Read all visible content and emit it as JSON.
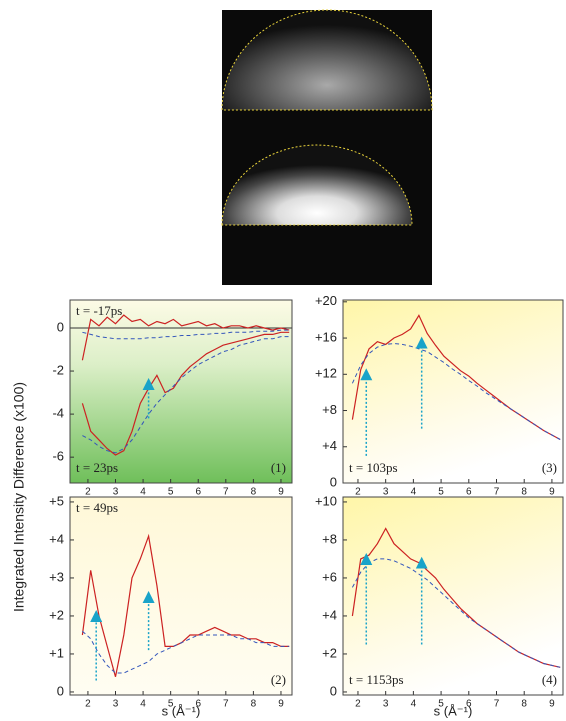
{
  "chart_data": [
    {
      "type": "line",
      "ylabel": "Integrated Intensity Difference (x100)",
      "panel_label": "(1)",
      "xlim": [
        1.35,
        9.4
      ],
      "ylim": [
        -7.2,
        1.3
      ],
      "xticks": [
        2,
        3,
        4,
        5,
        6,
        7,
        8,
        9
      ],
      "yticks": [
        0,
        -2,
        -4,
        -6
      ],
      "reference_line": 0,
      "x": [
        1.8,
        2.1,
        2.4,
        2.7,
        3.0,
        3.3,
        3.6,
        3.9,
        4.2,
        4.5,
        4.8,
        5.1,
        5.4,
        5.7,
        6.0,
        6.3,
        6.6,
        6.9,
        7.2,
        7.5,
        7.8,
        8.1,
        8.4,
        8.7,
        9.0,
        9.3
      ],
      "series": [
        {
          "name": "t = -17ps",
          "color": "#cc2222",
          "style": "solid",
          "values": [
            -1.5,
            0.4,
            0.1,
            0.5,
            0.2,
            0.6,
            0.3,
            0.4,
            0.1,
            0.3,
            0.2,
            0.4,
            0.1,
            0.2,
            0.3,
            0.1,
            0.2,
            0.0,
            0.1,
            0.1,
            0.0,
            0.1,
            0.0,
            -0.1,
            0.0,
            -0.1
          ]
        },
        {
          "color": "#3355bb",
          "style": "dashed",
          "values": [
            -0.2,
            -0.3,
            -0.4,
            -0.45,
            -0.5,
            -0.5,
            -0.5,
            -0.5,
            -0.45,
            -0.45,
            -0.4,
            -0.4,
            -0.35,
            -0.35,
            -0.3,
            -0.3,
            -0.25,
            -0.25,
            -0.2,
            -0.2,
            -0.2,
            -0.15,
            -0.15,
            -0.15,
            -0.1,
            -0.1
          ]
        },
        {
          "name": "t = 23ps",
          "color": "#cc2222",
          "style": "solid",
          "values": [
            -3.5,
            -4.8,
            -5.2,
            -5.6,
            -5.9,
            -5.7,
            -4.8,
            -3.5,
            -2.8,
            -2.2,
            -3.0,
            -2.8,
            -2.2,
            -1.8,
            -1.5,
            -1.2,
            -1.0,
            -0.8,
            -0.7,
            -0.6,
            -0.5,
            -0.4,
            -0.3,
            -0.3,
            -0.2,
            -0.2
          ]
        },
        {
          "color": "#3355bb",
          "style": "dashed",
          "values": [
            -5.0,
            -5.2,
            -5.5,
            -5.7,
            -5.8,
            -5.6,
            -5.2,
            -4.6,
            -4.0,
            -3.5,
            -3.1,
            -2.7,
            -2.3,
            -2.0,
            -1.7,
            -1.5,
            -1.3,
            -1.1,
            -1.0,
            -0.8,
            -0.7,
            -0.6,
            -0.5,
            -0.5,
            -0.4,
            -0.4
          ]
        }
      ],
      "arrows": [
        {
          "x": 4.2,
          "from": -4.2,
          "to": -2.6
        }
      ]
    },
    {
      "type": "line",
      "xlabel": "s (Å⁻¹)",
      "panel_label": "(2)",
      "xlim": [
        1.35,
        9.4
      ],
      "ylim": [
        -0.08,
        5.13
      ],
      "xticks": [
        2,
        3,
        4,
        5,
        6,
        7,
        8,
        9
      ],
      "yticks": [
        0,
        {
          "value": 1,
          "label": "+1"
        },
        {
          "value": 2,
          "label": "+2"
        },
        {
          "value": 3,
          "label": "+3"
        },
        {
          "value": 4,
          "label": "+4"
        },
        {
          "value": 5,
          "label": "+5"
        }
      ],
      "x": [
        1.8,
        2.1,
        2.4,
        2.7,
        3.0,
        3.3,
        3.6,
        3.9,
        4.2,
        4.5,
        4.8,
        5.1,
        5.4,
        5.7,
        6.0,
        6.3,
        6.6,
        6.9,
        7.2,
        7.5,
        7.8,
        8.1,
        8.4,
        8.7,
        9.0,
        9.3
      ],
      "series": [
        {
          "name": "t = 49ps",
          "color": "#cc2222",
          "style": "solid",
          "values": [
            1.5,
            3.2,
            2.0,
            1.2,
            0.4,
            1.5,
            3.0,
            3.5,
            4.1,
            2.8,
            1.2,
            1.2,
            1.3,
            1.5,
            1.5,
            1.6,
            1.7,
            1.6,
            1.5,
            1.5,
            1.4,
            1.4,
            1.3,
            1.3,
            1.2,
            1.2
          ]
        },
        {
          "color": "#3355bb",
          "style": "dashed",
          "values": [
            1.6,
            1.4,
            1.0,
            0.7,
            0.5,
            0.5,
            0.6,
            0.7,
            0.8,
            1.0,
            1.1,
            1.2,
            1.3,
            1.4,
            1.5,
            1.5,
            1.5,
            1.5,
            1.5,
            1.4,
            1.4,
            1.3,
            1.3,
            1.2,
            1.2,
            1.2
          ]
        }
      ],
      "arrows": [
        {
          "x": 2.3,
          "from": 0.3,
          "to": 2.0
        },
        {
          "x": 4.2,
          "from": 1.1,
          "to": 2.5
        }
      ]
    },
    {
      "type": "line",
      "panel_label": "(3)",
      "xlim": [
        1.46,
        9.4
      ],
      "ylim": [
        0,
        20.2
      ],
      "xticks": [
        2,
        3,
        4,
        5,
        6,
        7,
        8,
        9
      ],
      "yticks": [
        0,
        {
          "value": 4,
          "label": "+4"
        },
        {
          "value": 8,
          "label": "+8"
        },
        {
          "value": 12,
          "label": "+12"
        },
        {
          "value": 16,
          "label": "+16"
        },
        {
          "value": 20,
          "label": "+20"
        }
      ],
      "x": [
        1.8,
        2.1,
        2.4,
        2.7,
        3.0,
        3.3,
        3.6,
        3.9,
        4.2,
        4.5,
        4.8,
        5.1,
        5.4,
        5.7,
        6.0,
        6.3,
        6.6,
        6.9,
        7.2,
        7.5,
        7.8,
        8.1,
        8.4,
        8.7,
        9.0,
        9.3
      ],
      "series": [
        {
          "name": "t = 103ps",
          "color": "#cc2222",
          "style": "solid",
          "values": [
            7.0,
            12.5,
            14.8,
            15.6,
            15.3,
            16.0,
            16.4,
            17.0,
            18.5,
            16.5,
            15.2,
            14.0,
            13.2,
            12.4,
            11.8,
            11.0,
            10.3,
            9.6,
            8.9,
            8.2,
            7.6,
            7.0,
            6.4,
            5.8,
            5.3,
            4.8
          ]
        },
        {
          "color": "#3355bb",
          "style": "dashed",
          "values": [
            11,
            13,
            14.3,
            15,
            15.3,
            15.4,
            15.3,
            15.1,
            14.8,
            14.5,
            13.9,
            13.3,
            12.6,
            12.0,
            11.3,
            10.7,
            10.0,
            9.4,
            8.8,
            8.2,
            7.6,
            7.0,
            6.4,
            5.8,
            5.3,
            4.8
          ]
        }
      ],
      "arrows": [
        {
          "x": 2.3,
          "from": 3,
          "to": 12
        },
        {
          "x": 4.3,
          "from": 6,
          "to": 15.5
        }
      ]
    },
    {
      "type": "line",
      "xlabel": "s (Å⁻¹)",
      "panel_label": "(4)",
      "xlim": [
        1.46,
        9.4
      ],
      "ylim": [
        -0.16,
        10.26
      ],
      "xticks": [
        2,
        3,
        4,
        5,
        6,
        7,
        8,
        9
      ],
      "yticks": [
        0,
        {
          "value": 2,
          "label": "+2"
        },
        {
          "value": 4,
          "label": "+4"
        },
        {
          "value": 6,
          "label": "+6"
        },
        {
          "value": 8,
          "label": "+8"
        },
        {
          "value": 10,
          "label": "+10"
        }
      ],
      "x": [
        1.8,
        2.1,
        2.4,
        2.7,
        3.0,
        3.3,
        3.6,
        3.9,
        4.2,
        4.5,
        4.8,
        5.1,
        5.4,
        5.7,
        6.0,
        6.3,
        6.6,
        6.9,
        7.2,
        7.5,
        7.8,
        8.1,
        8.4,
        8.7,
        9.0,
        9.3
      ],
      "series": [
        {
          "name": "t = 1153ps",
          "color": "#cc2222",
          "style": "solid",
          "values": [
            4.0,
            7.0,
            7.2,
            7.8,
            8.6,
            7.8,
            7.4,
            7.0,
            6.8,
            6.4,
            6.0,
            5.4,
            4.9,
            4.4,
            4.0,
            3.6,
            3.3,
            3.0,
            2.7,
            2.4,
            2.1,
            1.9,
            1.7,
            1.5,
            1.4,
            1.3
          ]
        },
        {
          "color": "#3355bb",
          "style": "dashed",
          "values": [
            5.5,
            6.3,
            6.8,
            7.0,
            7.0,
            6.9,
            6.7,
            6.5,
            6.2,
            5.9,
            5.5,
            5.1,
            4.7,
            4.3,
            3.9,
            3.6,
            3.3,
            3.0,
            2.7,
            2.4,
            2.1,
            1.9,
            1.7,
            1.5,
            1.4,
            1.3
          ]
        }
      ],
      "arrows": [
        {
          "x": 2.3,
          "from": 2.5,
          "to": 7.0
        },
        {
          "x": 4.3,
          "from": 2.5,
          "to": 6.8
        }
      ]
    }
  ]
}
